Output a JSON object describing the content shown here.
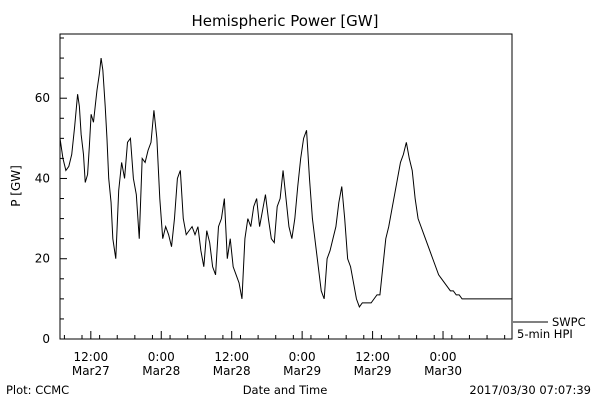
{
  "title": "Hemispheric Power [GW]",
  "footer": {
    "left": "Plot: CCMC",
    "center": "Date and Time",
    "right": "2017/03/30 07:07:39"
  },
  "legend": {
    "line1": "SWPC",
    "line2": "5-min HPI"
  },
  "chart_data": {
    "type": "line",
    "title": "Hemispheric Power [GW]",
    "xlabel": "Date and Time",
    "ylabel": "P [GW]",
    "xlim": [
      0,
      77
    ],
    "ylim": [
      0,
      76
    ],
    "x_unit": "hours since Mar27 06:45",
    "x_ticks": [
      {
        "x": 5.25,
        "label1": "12:00",
        "label2": "Mar27"
      },
      {
        "x": 17.25,
        "label1": "0:00",
        "label2": "Mar28"
      },
      {
        "x": 29.25,
        "label1": "12:00",
        "label2": "Mar28"
      },
      {
        "x": 41.25,
        "label1": "0:00",
        "label2": "Mar29"
      },
      {
        "x": 53.25,
        "label1": "12:00",
        "label2": "Mar29"
      },
      {
        "x": 65.25,
        "label1": "0:00",
        "label2": "Mar30"
      }
    ],
    "y_ticks": [
      0,
      20,
      40,
      60
    ],
    "grid": false,
    "series": [
      {
        "name": "SWPC 5-min HPI",
        "x": [
          0,
          0.5,
          1,
          1.5,
          2,
          2.5,
          3,
          3.3,
          3.6,
          4,
          4.3,
          4.7,
          5,
          5.3,
          5.7,
          6,
          6.3,
          6.7,
          7,
          7.3,
          7.7,
          8,
          8.3,
          8.7,
          9,
          9.5,
          10,
          10.5,
          11,
          11.5,
          12,
          12.5,
          13,
          13.5,
          14,
          14.5,
          15,
          15.5,
          16,
          16.5,
          17,
          17.5,
          18,
          18.5,
          19,
          19.5,
          20,
          20.5,
          21,
          21.5,
          22,
          22.5,
          23,
          23.5,
          24,
          24.5,
          25,
          25.5,
          26,
          26.5,
          27,
          27.5,
          28,
          28.5,
          29,
          29.5,
          30,
          30.5,
          31,
          31.5,
          32,
          32.5,
          33,
          33.5,
          34,
          34.5,
          35,
          35.5,
          36,
          36.5,
          37,
          37.5,
          38,
          38.5,
          39,
          39.5,
          40,
          40.5,
          41,
          41.5,
          42,
          42.5,
          43,
          43.5,
          44,
          44.5,
          45,
          45.5,
          46,
          46.5,
          47,
          47.5,
          48,
          48.5,
          49,
          49.5,
          50,
          50.5,
          51,
          51.5,
          52,
          52.5,
          53,
          53.5,
          54,
          54.5,
          55,
          55.5,
          56,
          56.5,
          57,
          57.5,
          58,
          58.5,
          59,
          59.5,
          60,
          60.5,
          61,
          61.5,
          62,
          62.5,
          63,
          63.5,
          64,
          64.5,
          65,
          65.5,
          66,
          66.5,
          67,
          67.5,
          68,
          68.5,
          69,
          69.5,
          70,
          70.5,
          71,
          71.5,
          72,
          72.5,
          73,
          73.5,
          74,
          74.5,
          75,
          75.5,
          76,
          76.5,
          77
        ],
        "y": [
          50,
          45,
          42,
          43,
          46,
          53,
          61,
          58,
          51,
          46,
          39,
          41,
          48,
          56,
          54,
          58,
          62,
          66,
          70,
          67,
          58,
          50,
          40,
          34,
          25,
          20,
          37,
          44,
          40,
          49,
          50,
          40,
          36,
          25,
          45,
          44,
          47,
          49,
          57,
          50,
          35,
          25,
          28,
          26,
          23,
          30,
          40,
          42,
          30,
          26,
          27,
          28,
          26,
          28,
          22,
          18,
          27,
          24,
          18,
          16,
          28,
          30,
          35,
          20,
          25,
          18,
          16,
          14,
          10,
          25,
          30,
          28,
          33,
          35,
          28,
          32,
          36,
          30,
          25,
          24,
          33,
          35,
          42,
          35,
          28,
          25,
          30,
          38,
          45,
          50,
          52,
          40,
          30,
          24,
          18,
          12,
          10,
          20,
          22,
          25,
          28,
          34,
          38,
          30,
          20,
          18,
          14,
          10,
          8,
          9,
          9,
          9,
          9,
          10,
          11,
          11,
          18,
          25,
          28,
          32,
          36,
          40,
          44,
          46,
          49,
          45,
          42,
          35,
          30,
          28,
          26,
          24,
          22,
          20,
          18,
          16,
          15,
          14,
          13,
          12,
          12,
          11,
          11,
          10,
          10,
          10,
          10,
          10,
          10,
          10,
          10,
          10,
          10,
          10,
          10,
          10,
          10,
          10,
          10,
          10,
          10
        ]
      }
    ]
  }
}
